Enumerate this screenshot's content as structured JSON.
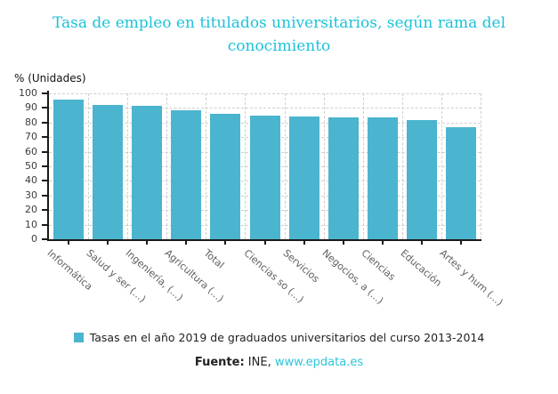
{
  "header": {
    "title": "Tasa de empleo en titulados universitarios, según rama del conocimiento"
  },
  "chart_data": {
    "type": "bar",
    "title": "Tasa de empleo en titulados universitarios, según rama del conocimiento",
    "units_label": "% (Unidades)",
    "categories": [
      "Informática",
      "Salud y ser (...)",
      "Ingeniería, (...)",
      "Agricultura (...)",
      "Total",
      "Ciencias so (...)",
      "Servicios",
      "Negocios, a (...)",
      "Ciencias",
      "Educación",
      "Artes y hum (...)"
    ],
    "values": [
      95.9,
      92.3,
      91.6,
      88.4,
      86.0,
      84.6,
      84.0,
      83.4,
      83.3,
      81.8,
      76.9
    ],
    "xlabel": "",
    "ylabel": "% (Unidades)",
    "ylim": [
      0,
      100
    ],
    "ytick_step": 10,
    "grid": true,
    "legend_position": "bottom",
    "legend": "Tasas en el año 2019 de graduados universitarios del curso 2013-2014"
  },
  "footer": {
    "source_label": "Fuente:",
    "source_text": " INE, ",
    "link_text": "www.epdata.es"
  },
  "colors": {
    "title": "#1dc2d8",
    "bar": "#4bb4ce",
    "grid": "#cfcfcf",
    "axis": "#1a1a1a",
    "x_label": "#5f5f5f",
    "link": "#2fc4d9"
  }
}
